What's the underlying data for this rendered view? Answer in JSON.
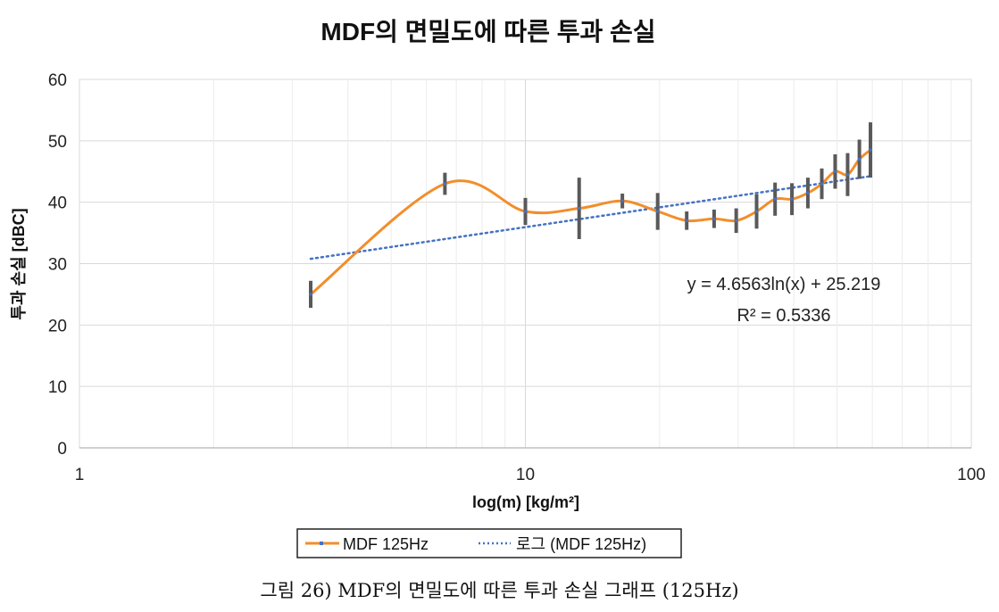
{
  "chart_data": {
    "type": "line",
    "title": "MDF의 면밀도에 따른 투과 손실",
    "xlabel": "log(m) [kg/m²]",
    "ylabel": "투과 손실 [dBC]",
    "x_scale": "log",
    "xlim": [
      1,
      100
    ],
    "ylim": [
      0,
      60
    ],
    "x_ticks": [
      "1",
      "10",
      "100"
    ],
    "y_ticks": [
      "0",
      "10",
      "20",
      "30",
      "40",
      "50",
      "60"
    ],
    "grid": true,
    "series": [
      {
        "name": "MDF 125Hz",
        "color": "#f28e2b",
        "style": "smooth",
        "x": [
          3.3,
          6.6,
          10,
          13.2,
          16.5,
          19.8,
          23,
          26.5,
          29.7,
          33,
          36.3,
          39.6,
          43,
          46.2,
          49.5,
          52.8,
          56.1,
          59.4
        ],
        "y": [
          25,
          43,
          38.5,
          39,
          40.2,
          38.5,
          37,
          37.3,
          37,
          38.5,
          40.5,
          40.5,
          41.5,
          43,
          45,
          44.5,
          47,
          48.5
        ],
        "error": [
          2.2,
          1.8,
          2.2,
          5,
          1.2,
          3,
          1.5,
          1.5,
          2,
          2.8,
          2.7,
          2.6,
          2.5,
          2.5,
          2.8,
          3.5,
          3.2,
          4.5
        ]
      },
      {
        "name": "로그 (MDF 125Hz)",
        "color": "#4472c4",
        "style": "dotted",
        "trendline": {
          "type": "log",
          "a": 4.6563,
          "b": 25.219,
          "x_range": [
            3.3,
            59.4
          ]
        }
      }
    ],
    "annotations": {
      "equation": "y = 4.6563ln(x) + 25.219",
      "r_squared": "R² = 0.5336"
    },
    "legend": [
      "MDF 125Hz",
      "로그 (MDF 125Hz)"
    ],
    "legend_position": "bottom"
  },
  "caption": "그림 26) MDF의 면밀도에 따른 투과 손실 그래프 (125Hz)"
}
